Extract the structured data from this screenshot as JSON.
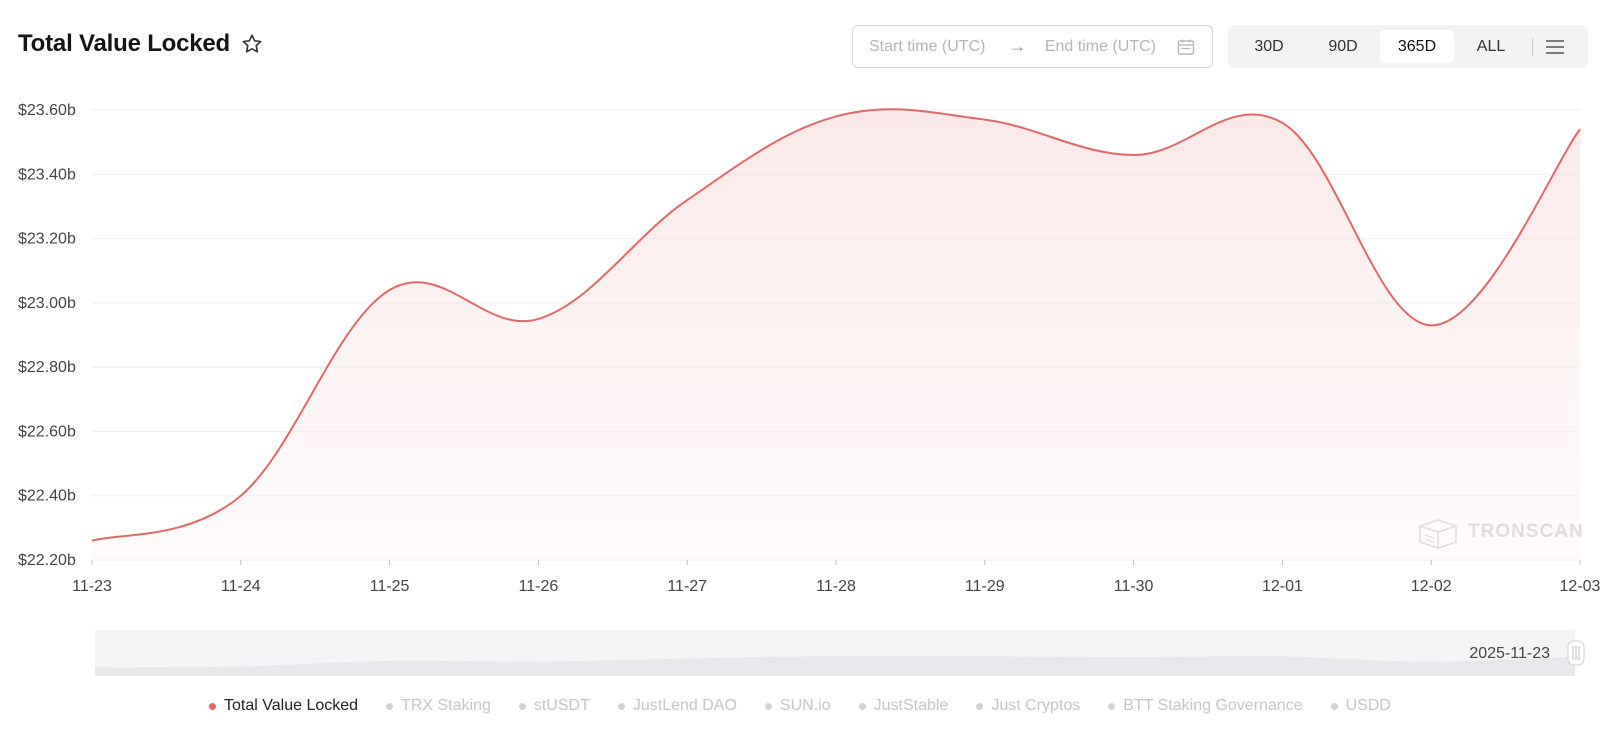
{
  "header": {
    "title": "Total Value Locked",
    "favorite_icon": "star-outline-icon"
  },
  "date_range": {
    "start_placeholder": "Start time (UTC)",
    "end_placeholder": "End time (UTC)",
    "separator_icon": "arrow-right-icon",
    "calendar_icon": "calendar-icon"
  },
  "periods": [
    {
      "label": "30D",
      "active": false
    },
    {
      "label": "90D",
      "active": false
    },
    {
      "label": "365D",
      "active": true
    },
    {
      "label": "ALL",
      "active": false
    }
  ],
  "menu_icon": "hamburger-menu-icon",
  "watermark": "TRONSCAN",
  "slider": {
    "handle_label": "2025-11-23"
  },
  "colors": {
    "series": "#e06a6a",
    "area_fill": "#fbeaea",
    "grid": "#eeeeee",
    "inactive_legend": "#c7c7c7"
  },
  "chart_data": {
    "type": "area",
    "title": "Total Value Locked",
    "x": [
      "11-23",
      "11-24",
      "11-25",
      "11-26",
      "11-27",
      "11-28",
      "11-29",
      "11-30",
      "12-01",
      "12-02",
      "12-03"
    ],
    "series": [
      {
        "name": "Total Value Locked",
        "values": [
          22.26,
          22.4,
          23.04,
          22.95,
          23.32,
          23.58,
          23.57,
          23.46,
          23.56,
          22.93,
          23.54
        ]
      }
    ],
    "y_ticks": [
      "$22.20b",
      "$22.40b",
      "$22.60b",
      "$22.80b",
      "$23.00b",
      "$23.20b",
      "$23.40b",
      "$23.60b"
    ],
    "ylim": [
      22.2,
      23.6
    ],
    "y_unit": "billion USD",
    "grid": true,
    "legend_position": "bottom",
    "legend": [
      {
        "label": "Total Value Locked",
        "active": true
      },
      {
        "label": "TRX Staking",
        "active": false
      },
      {
        "label": "stUSDT",
        "active": false
      },
      {
        "label": "JustLend DAO",
        "active": false
      },
      {
        "label": "SUN.io",
        "active": false
      },
      {
        "label": "JustStable",
        "active": false
      },
      {
        "label": "Just Cryptos",
        "active": false
      },
      {
        "label": "BTT Staking Governance",
        "active": false
      },
      {
        "label": "USDD",
        "active": false
      }
    ]
  }
}
